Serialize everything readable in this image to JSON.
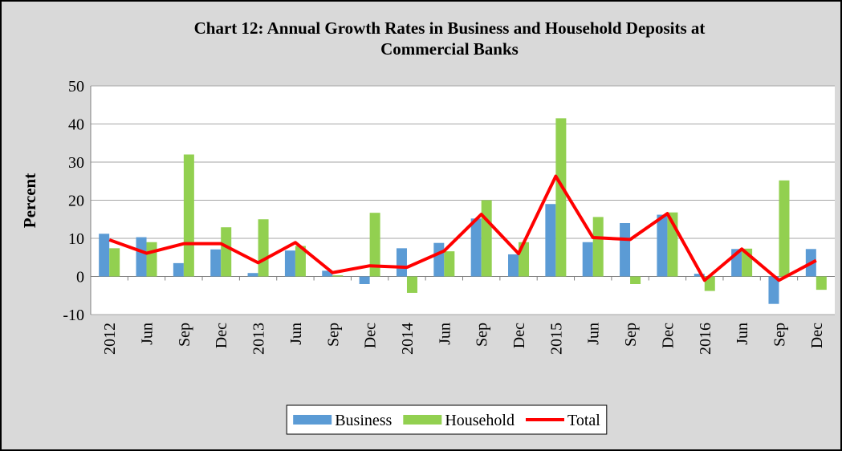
{
  "chart_data": {
    "type": "bar",
    "title": [
      "Chart 12: Annual Growth Rates in Business and Household Deposits at",
      "Commercial Banks"
    ],
    "y_label": "Percent",
    "categories": [
      "2012",
      "Jun",
      "Sep",
      "Dec",
      "2013",
      "Jun",
      "Sep",
      "Dec",
      "2014",
      "Jun",
      "Sep",
      "Dec",
      "2015",
      "Jun",
      "Sep",
      "Dec",
      "2016",
      "Jun",
      "Sep",
      "Dec"
    ],
    "series": [
      {
        "name": "Business",
        "type": "bar",
        "color": "#5b9bd5",
        "values": [
          11.2,
          10.3,
          3.5,
          7.1,
          0.9,
          6.8,
          1.5,
          -2.0,
          7.4,
          8.8,
          15.2,
          5.8,
          19.0,
          9.0,
          14.0,
          16.2,
          0.7,
          7.2,
          -7.2,
          7.2
        ]
      },
      {
        "name": "Household",
        "type": "bar",
        "color": "#92d050",
        "values": [
          7.4,
          9.0,
          32.0,
          12.9,
          15.0,
          8.0,
          0.3,
          16.7,
          -4.3,
          6.6,
          20.0,
          9.0,
          41.5,
          15.6,
          -2.0,
          16.8,
          -3.8,
          7.3,
          25.2,
          -3.5
        ]
      },
      {
        "name": "Total",
        "type": "line",
        "color": "#ff0000",
        "values": [
          9.6,
          6.1,
          8.6,
          8.6,
          3.6,
          8.9,
          1.0,
          2.8,
          2.4,
          6.7,
          16.3,
          6.0,
          26.3,
          10.2,
          9.7,
          16.5,
          -1.0,
          7.2,
          -1.0,
          4.2
        ]
      }
    ],
    "ylim": [
      -10,
      50
    ],
    "yticks": [
      -10,
      0,
      10,
      20,
      30,
      40,
      50
    ],
    "grid": true,
    "legend": "bottom"
  }
}
